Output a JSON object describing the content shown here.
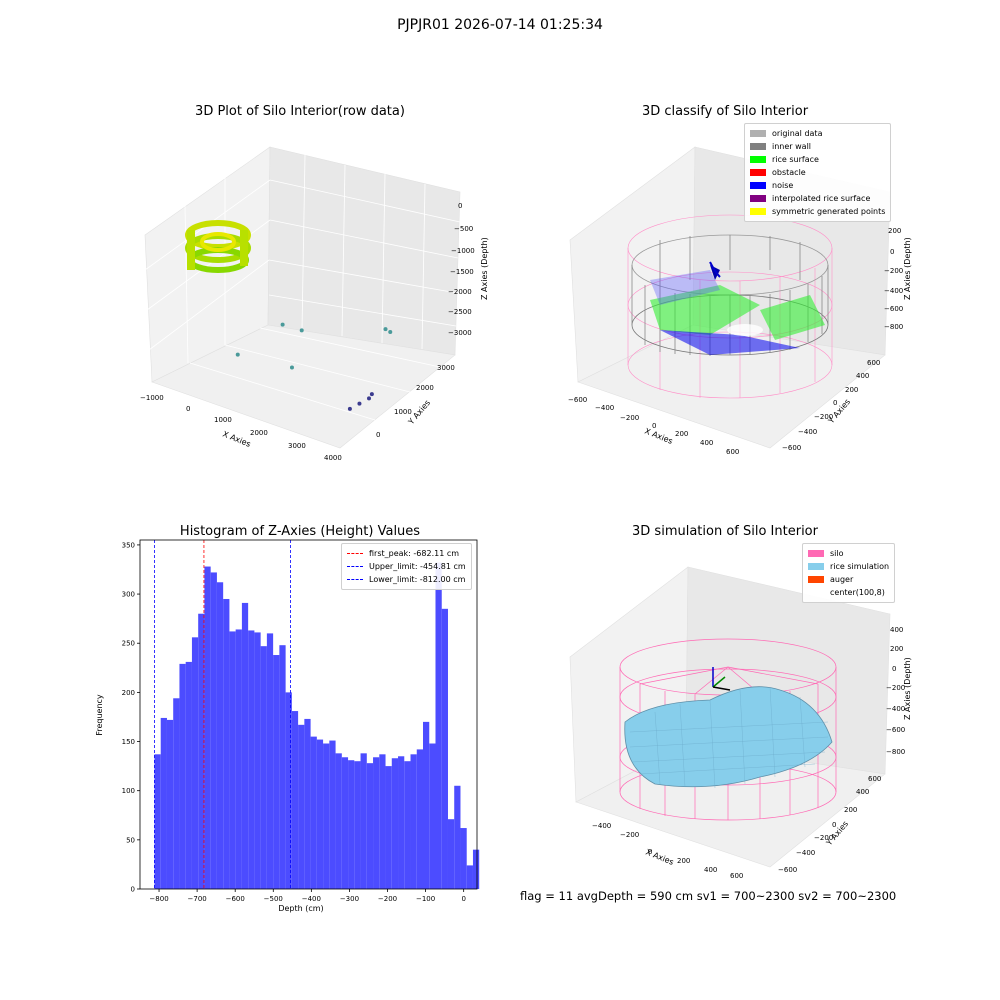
{
  "suptitle": "PJPJR01 2026-07-14 01:25:34",
  "footer_text": "flag = 11  avgDepth = 590 cm  sv1 = 700~2300  sv2 = 700~2300",
  "chart_data": [
    {
      "type": "scatter3d",
      "title": "3D Plot of Silo Interior(row data)",
      "xlabel": "X Axies",
      "ylabel": "Y Axies",
      "zlabel": "Z Axies (Depth)",
      "x_ticks": [
        "−1000",
        "0",
        "1000",
        "2000",
        "3000",
        "4000"
      ],
      "y_ticks": [
        "0",
        "1000",
        "2000",
        "3000"
      ],
      "z_ticks": [
        "0",
        "−500",
        "−1000",
        "−1500",
        "−2000",
        "−2500",
        "−3000"
      ],
      "xlim": [
        -1000,
        4000
      ],
      "ylim": [
        -500,
        3500
      ],
      "zlim": [
        -3100,
        100
      ],
      "outlier_points": [
        {
          "x": 1200,
          "y": 1800,
          "z": -2400
        },
        {
          "x": 1000,
          "y": 1400,
          "z": -2100
        },
        {
          "x": 500,
          "y": 500,
          "z": -2500
        },
        {
          "x": 1700,
          "y": 800,
          "z": -2600
        },
        {
          "x": 2800,
          "y": 2600,
          "z": -2300
        },
        {
          "x": 3000,
          "y": 2500,
          "z": -2250
        },
        {
          "x": 3500,
          "y": 1200,
          "z": -2900
        },
        {
          "x": 3500,
          "y": 1100,
          "z": -2950
        },
        {
          "x": 3400,
          "y": 900,
          "z": -3000
        },
        {
          "x": 3300,
          "y": 700,
          "z": -3050
        }
      ]
    },
    {
      "type": "scatter3d",
      "title": "3D classify of Silo Interior",
      "x_ticks": [
        "−600",
        "−400",
        "−200",
        "0",
        "200",
        "400",
        "600"
      ],
      "y_ticks": [
        "−600",
        "−400",
        "−200",
        "0",
        "200",
        "400",
        "600"
      ],
      "z_ticks": [
        "200",
        "0",
        "−200",
        "−400",
        "−600",
        "−800"
      ],
      "xlabel": "X Axies",
      "ylabel": "Y Axies",
      "zlabel": "Z Axies (Depth)",
      "legend": [
        {
          "label": "original data",
          "color": "#b0b0b0"
        },
        {
          "label": "inner wall",
          "color": "#808080"
        },
        {
          "label": "rice surface",
          "color": "#00ff00"
        },
        {
          "label": "obstacle",
          "color": "#ff0000"
        },
        {
          "label": "noise",
          "color": "#0000ff"
        },
        {
          "label": "interpolated rice surface",
          "color": "#800080"
        },
        {
          "label": "symmetric generated points",
          "color": "#ffff00"
        }
      ]
    },
    {
      "type": "bar",
      "title": "Histogram of Z-Axies (Height) Values",
      "xlabel": "Depth (cm)",
      "ylabel": "Frequency",
      "bin_start": -812,
      "bin_width": 16.4,
      "values": [
        137,
        174,
        172,
        194,
        229,
        231,
        256,
        280,
        328,
        322,
        312,
        295,
        262,
        264,
        291,
        263,
        261,
        247,
        260,
        238,
        248,
        200,
        181,
        167,
        173,
        155,
        152,
        148,
        151,
        138,
        134,
        131,
        130,
        138,
        128,
        134,
        137,
        125,
        133,
        135,
        130,
        137,
        142,
        170,
        148,
        332,
        285,
        71,
        105,
        62,
        24,
        40
      ],
      "xlim": [
        -850,
        35
      ],
      "ylim": [
        0,
        355
      ],
      "x_ticks": [
        -800,
        -700,
        -600,
        -500,
        -400,
        -300,
        -200,
        -100,
        0
      ],
      "x_tick_labels": [
        "−800",
        "−700",
        "−600",
        "−500",
        "−400",
        "−300",
        "−200",
        "−100",
        "0"
      ],
      "y_ticks": [
        0,
        50,
        100,
        150,
        200,
        250,
        300,
        350
      ],
      "bar_color": "#4c4cff",
      "vlines": [
        {
          "label": "first_peak: -682.11 cm",
          "x": -682.11,
          "color": "#ff0000"
        },
        {
          "label": "Upper_limit: -454.81 cm",
          "x": -454.81,
          "color": "#0000ff"
        },
        {
          "label": "Lower_limit: -812.00 cm",
          "x": -812.0,
          "color": "#0000ff"
        }
      ],
      "legend_position": "top-right"
    },
    {
      "type": "surface3d",
      "title": "3D simulation of Silo Interior",
      "x_ticks": [
        "−400",
        "−200",
        "0",
        "200",
        "400",
        "600"
      ],
      "y_ticks": [
        "−600",
        "−400",
        "−200",
        "0",
        "200",
        "400",
        "600"
      ],
      "z_ticks": [
        "400",
        "200",
        "0",
        "−200",
        "−400",
        "−600",
        "−800"
      ],
      "xlabel": "X Axies",
      "ylabel": "Y Axies",
      "zlabel": "Z Axies (Depth)",
      "legend": [
        {
          "label": "silo",
          "color": "#ff69b4"
        },
        {
          "label": "rice simulation",
          "color": "#87ceeb"
        },
        {
          "label": "auger",
          "color": "#ff4500"
        },
        {
          "label": "center(100,8)",
          "color": ""
        }
      ]
    }
  ]
}
